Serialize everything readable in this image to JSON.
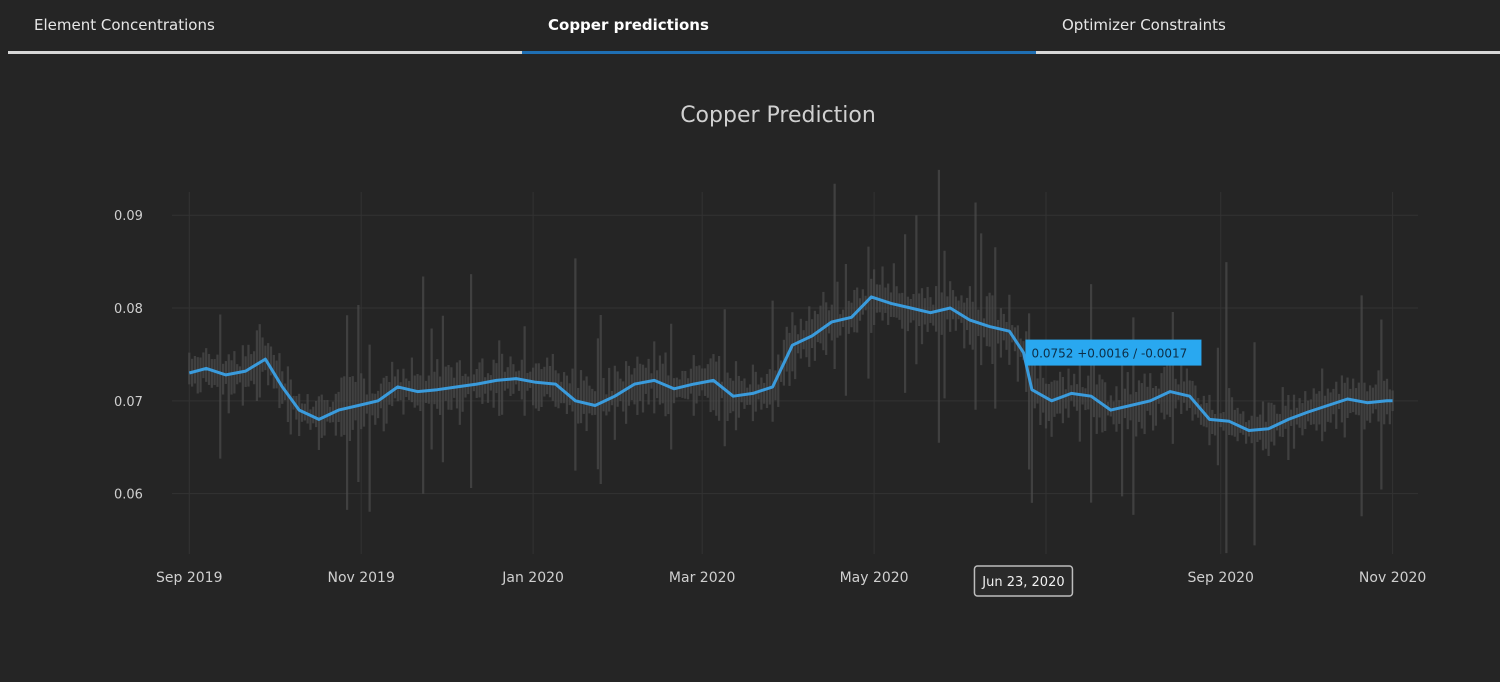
{
  "tabs": [
    {
      "label": "Element Concentrations",
      "active": false
    },
    {
      "label": "Copper predictions",
      "active": true
    },
    {
      "label": "Optimizer Constraints",
      "active": false
    }
  ],
  "colors": {
    "background": "#252525",
    "line": "#3a9bdc",
    "band": "#4a4a4a",
    "grid": "#333333",
    "tooltip_bg": "#29a8f0",
    "active_tab": "#1f6fb3"
  },
  "hover": {
    "x_label": "Jun 23, 2020",
    "y_label": "0.0752 +0.0016 / -0.0017",
    "x": "2020-06-23",
    "y": 0.0752
  },
  "chart_data": {
    "type": "line",
    "title": "Copper Prediction",
    "xlabel": "",
    "ylabel": "",
    "xlim": [
      "2019-08-28",
      "2020-11-10"
    ],
    "ylim": [
      0.0535,
      0.0925
    ],
    "x_ticks": [
      "2019-09-01",
      "2019-11-01",
      "2020-01-01",
      "2020-03-01",
      "2020-05-01",
      "2020-07-01",
      "2020-09-01",
      "2020-11-01"
    ],
    "x_tick_labels": [
      "Sep 2019",
      "Nov 2019",
      "Jan 2020",
      "Mar 2020",
      "May 2020",
      "",
      "Sep 2020",
      "Nov 2020"
    ],
    "y_ticks": [
      0.06,
      0.07,
      0.08,
      0.09
    ],
    "y_tick_labels": [
      "0.06",
      "0.07",
      "0.08",
      "0.09"
    ],
    "grid": true,
    "series": [
      {
        "x": [
          "2019-09-01",
          "2019-09-07",
          "2019-09-14",
          "2019-09-21",
          "2019-09-28",
          "2019-10-04",
          "2019-10-10",
          "2019-10-17",
          "2019-10-24",
          "2019-10-31",
          "2019-11-07",
          "2019-11-14",
          "2019-11-21",
          "2019-11-28",
          "2019-12-05",
          "2019-12-12",
          "2019-12-19",
          "2019-12-26",
          "2020-01-02",
          "2020-01-09",
          "2020-01-16",
          "2020-01-23",
          "2020-01-30",
          "2020-02-06",
          "2020-02-13",
          "2020-02-20",
          "2020-02-27",
          "2020-03-05",
          "2020-03-12",
          "2020-03-19",
          "2020-03-26",
          "2020-04-02",
          "2020-04-09",
          "2020-04-16",
          "2020-04-23",
          "2020-04-30",
          "2020-05-07",
          "2020-05-14",
          "2020-05-21",
          "2020-05-28",
          "2020-06-04",
          "2020-06-11",
          "2020-06-18",
          "2020-06-23",
          "2020-06-26",
          "2020-07-03",
          "2020-07-10",
          "2020-07-17",
          "2020-07-24",
          "2020-07-31",
          "2020-08-07",
          "2020-08-14",
          "2020-08-21",
          "2020-08-28",
          "2020-09-04",
          "2020-09-11",
          "2020-09-18",
          "2020-09-25",
          "2020-10-02",
          "2020-10-09",
          "2020-10-16",
          "2020-10-23",
          "2020-10-30",
          "2020-11-01"
        ],
        "y": [
          0.073,
          0.0735,
          0.0728,
          0.0732,
          0.0745,
          0.0715,
          0.069,
          0.068,
          0.069,
          0.0695,
          0.07,
          0.0715,
          0.071,
          0.0712,
          0.0715,
          0.0718,
          0.0722,
          0.0724,
          0.072,
          0.0718,
          0.07,
          0.0695,
          0.0705,
          0.0718,
          0.0722,
          0.0713,
          0.0718,
          0.0722,
          0.0705,
          0.0708,
          0.0715,
          0.076,
          0.077,
          0.0785,
          0.079,
          0.0812,
          0.0805,
          0.08,
          0.0795,
          0.08,
          0.0787,
          0.078,
          0.0775,
          0.0752,
          0.0712,
          0.07,
          0.0708,
          0.0705,
          0.069,
          0.0695,
          0.07,
          0.071,
          0.0705,
          0.068,
          0.0678,
          0.0668,
          0.067,
          0.068,
          0.0688,
          0.0695,
          0.0702,
          0.0698,
          0.07,
          0.07
        ]
      }
    ]
  }
}
